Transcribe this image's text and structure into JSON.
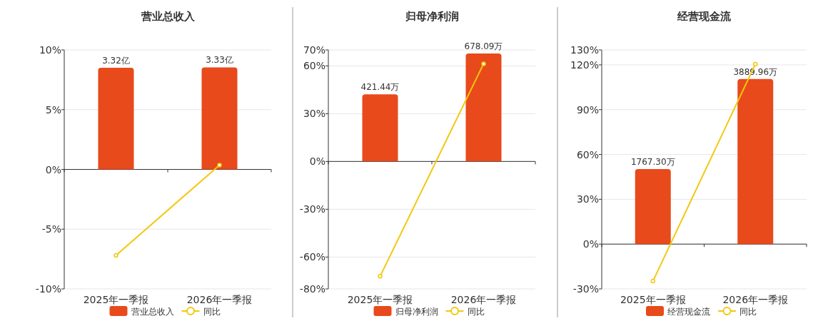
{
  "chart_data": [
    {
      "type": "bar",
      "title": "营业总收入",
      "categories": [
        "2025年一季报",
        "2026年一季报"
      ],
      "series": [
        {
          "name": "营业总收入",
          "color": "#e84a1c",
          "axis": "y2",
          "values": [
            3.32,
            3.33
          ],
          "value_labels": [
            "3.32亿",
            "3.33亿"
          ]
        },
        {
          "name": "同比",
          "type": "line",
          "color": "#f2c80f",
          "marker": "circle",
          "values": [
            -7.2,
            0.36
          ]
        }
      ],
      "ylim": [
        -10,
        10
      ],
      "yticks": [
        {
          "value": -10,
          "label": "-10%"
        },
        {
          "value": -5,
          "label": "-5%"
        },
        {
          "value": 0,
          "label": "0%"
        },
        {
          "value": 5,
          "label": "5%"
        },
        {
          "value": 10,
          "label": "10%"
        }
      ],
      "y2lim": [
        -3.9,
        3.9
      ],
      "grid": "y",
      "legend": "bottom"
    },
    {
      "type": "bar",
      "title": "归母净利润",
      "categories": [
        "2025年一季报",
        "2026年一季报"
      ],
      "series": [
        {
          "name": "归母净利润",
          "color": "#e84a1c",
          "axis": "y2",
          "values": [
            421.44,
            678.09
          ],
          "value_labels": [
            "421.44万",
            "678.09万"
          ]
        },
        {
          "name": "同比",
          "type": "line",
          "color": "#f2c80f",
          "marker": "circle",
          "values": [
            -72.1,
            61.3
          ]
        }
      ],
      "ylim": [
        -80,
        70
      ],
      "yticks": [
        {
          "value": -80,
          "label": "-80%"
        },
        {
          "value": -60,
          "label": "-60%"
        },
        {
          "value": -30,
          "label": "-30%"
        },
        {
          "value": 0,
          "label": "0%"
        },
        {
          "value": 30,
          "label": "30%"
        },
        {
          "value": 60,
          "label": "60%"
        },
        {
          "value": 70,
          "label": "70%"
        }
      ],
      "y2lim": [
        -800,
        700
      ],
      "grid": "y",
      "legend": "bottom"
    },
    {
      "type": "bar",
      "title": "经营现金流",
      "categories": [
        "2025年一季报",
        "2026年一季报"
      ],
      "series": [
        {
          "name": "经营现金流",
          "color": "#e84a1c",
          "axis": "y2",
          "values": [
            1767.3,
            3889.96
          ],
          "value_labels": [
            "1767.30万",
            "3889.96万"
          ]
        },
        {
          "name": "同比",
          "type": "line",
          "color": "#f2c80f",
          "marker": "circle",
          "values": [
            -24.8,
            120.5
          ]
        }
      ],
      "ylim": [
        -30,
        130
      ],
      "yticks": [
        {
          "value": -30,
          "label": "-30%"
        },
        {
          "value": 0,
          "label": "0%"
        },
        {
          "value": 30,
          "label": "30%"
        },
        {
          "value": 60,
          "label": "60%"
        },
        {
          "value": 90,
          "label": "90%"
        },
        {
          "value": 120,
          "label": "120%"
        },
        {
          "value": 130,
          "label": "130%"
        }
      ],
      "y2lim": [
        -1056,
        4576
      ],
      "grid": "y",
      "legend": "bottom"
    }
  ]
}
